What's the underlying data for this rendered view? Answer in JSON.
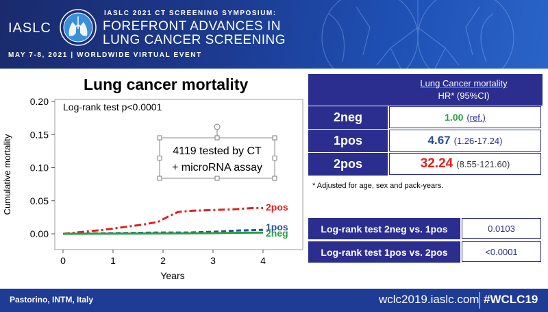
{
  "header": {
    "logo_text": "IASLC",
    "symposium": "IASLC 2021 CT SCREENING SYMPOSIUM:",
    "headline_1": "FOREFRONT ADVANCES IN",
    "headline_2": "LUNG CANCER SCREENING",
    "event_date": "MAY 7-8, 2021 | WORLDWIDE VIRTUAL EVENT"
  },
  "chart_data": {
    "type": "line",
    "title": "Lung cancer mortality",
    "xlabel": "Years",
    "ylabel": "Cumulative mortality",
    "xlim": [
      0,
      4
    ],
    "ylim": [
      0,
      0.2
    ],
    "xticks": [
      0,
      1,
      2,
      3,
      4
    ],
    "yticks": [
      "0.00",
      "0.05",
      "0.10",
      "0.15",
      "0.20"
    ],
    "annotation_test": "Log-rank test p<0.0001",
    "annotation_box_1": "4119 tested by CT",
    "annotation_box_2": "+ microRNA assay",
    "series": [
      {
        "name": "2pos",
        "color": "#e02020",
        "dash": "dashdot",
        "x": [
          0,
          0.4,
          0.8,
          1.2,
          1.6,
          1.9,
          2.0,
          2.1,
          2.3,
          2.6,
          3.0,
          3.4,
          3.8,
          4.0
        ],
        "y": [
          0,
          0.003,
          0.006,
          0.01,
          0.014,
          0.018,
          0.022,
          0.026,
          0.033,
          0.035,
          0.036,
          0.037,
          0.039,
          0.039
        ]
      },
      {
        "name": "1pos",
        "color": "#2b4ea0",
        "dash": "dash",
        "x": [
          0,
          0.5,
          1.0,
          1.5,
          2.0,
          2.5,
          3.0,
          3.5,
          4.0
        ],
        "y": [
          0,
          0.0005,
          0.001,
          0.0015,
          0.002,
          0.002,
          0.003,
          0.005,
          0.006
        ]
      },
      {
        "name": "2neg",
        "color": "#2aa040",
        "dash": "solid",
        "x": [
          0,
          1.0,
          2.0,
          3.0,
          3.5,
          4.0
        ],
        "y": [
          0,
          0.0003,
          0.0006,
          0.001,
          0.0015,
          0.0018
        ]
      }
    ]
  },
  "hr_table": {
    "header_title": "Lung Cancer mortality",
    "header_sub": "HR* (95%CI)",
    "rows": [
      {
        "group": "2neg",
        "hr": "1.00",
        "ci": "(ref.)",
        "color": "#2aa040"
      },
      {
        "group": "1pos",
        "hr": "4.67",
        "ci": "(1.26-17.24)",
        "color": "#2b4ea0"
      },
      {
        "group": "2pos",
        "hr": "32.24",
        "ci": "(8.55-121.60)",
        "color": "#e02020"
      }
    ],
    "footnote": "* Adjusted for age, sex and pack-years."
  },
  "logrank_table": {
    "rows": [
      {
        "label": "Log-rank test 2neg vs. 1pos",
        "p": "0.0103"
      },
      {
        "label": "Log-rank test 1pos vs. 2pos",
        "p": "<0.0001"
      }
    ]
  },
  "footer": {
    "author": "Pastorino, INTM, Italy",
    "site": "wclc2019.iaslc.com",
    "hashtag": "#WCLC19"
  }
}
